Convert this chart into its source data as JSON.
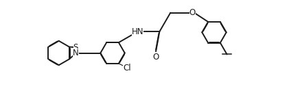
{
  "bg_color": "#ffffff",
  "line_color": "#1a1a1a",
  "line_width": 1.4,
  "dbo": 0.012,
  "figsize": [
    4.37,
    1.55
  ],
  "dpi": 100,
  "xlim": [
    0,
    10.5
  ],
  "ylim": [
    -0.5,
    3.8
  ]
}
